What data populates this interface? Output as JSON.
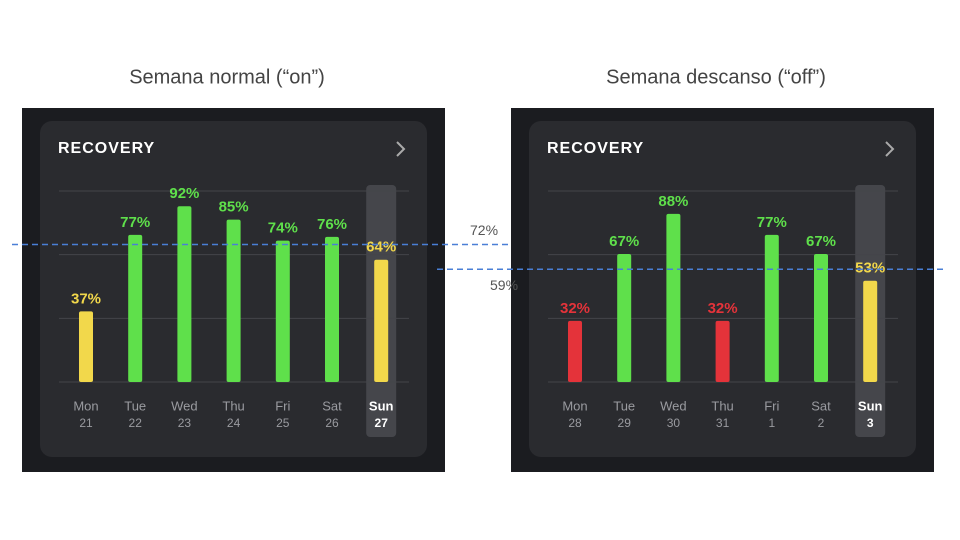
{
  "chart_data": [
    {
      "type": "bar",
      "heading": "Semana normal (“on”)",
      "title": "RECOVERY",
      "categories": [
        "Mon",
        "Tue",
        "Wed",
        "Thu",
        "Fri",
        "Sat",
        "Sun"
      ],
      "dates": [
        21,
        22,
        23,
        24,
        25,
        26,
        27
      ],
      "values": [
        37,
        77,
        92,
        85,
        74,
        76,
        64
      ],
      "value_labels": [
        "37%",
        "77%",
        "92%",
        "85%",
        "74%",
        "76%",
        "64%"
      ],
      "colors": [
        "#f2d84b",
        "#5fe04b",
        "#5fe04b",
        "#5fe04b",
        "#5fe04b",
        "#5fe04b",
        "#f2d84b"
      ],
      "ylim": [
        0,
        100
      ],
      "yticks": [
        0,
        33.3,
        66.7,
        100
      ],
      "grid": true,
      "reference_line": {
        "value": 72,
        "label": "72%",
        "color": "#4a7fd6"
      }
    },
    {
      "type": "bar",
      "heading": "Semana descanso (“off”)",
      "title": "RECOVERY",
      "categories": [
        "Mon",
        "Tue",
        "Wed",
        "Thu",
        "Fri",
        "Sat",
        "Sun"
      ],
      "dates": [
        28,
        29,
        30,
        31,
        1,
        2,
        3
      ],
      "values": [
        32,
        67,
        88,
        32,
        77,
        67,
        53
      ],
      "value_labels": [
        "32%",
        "67%",
        "88%",
        "32%",
        "77%",
        "67%",
        "53%"
      ],
      "colors": [
        "#e4333a",
        "#5fe04b",
        "#5fe04b",
        "#e4333a",
        "#5fe04b",
        "#5fe04b",
        "#f2d84b"
      ],
      "ylim": [
        0,
        100
      ],
      "yticks": [
        0,
        33.3,
        66.7,
        100
      ],
      "grid": true,
      "reference_line": {
        "value": 59,
        "label": "59%",
        "color": "#4a7fd6"
      }
    }
  ]
}
